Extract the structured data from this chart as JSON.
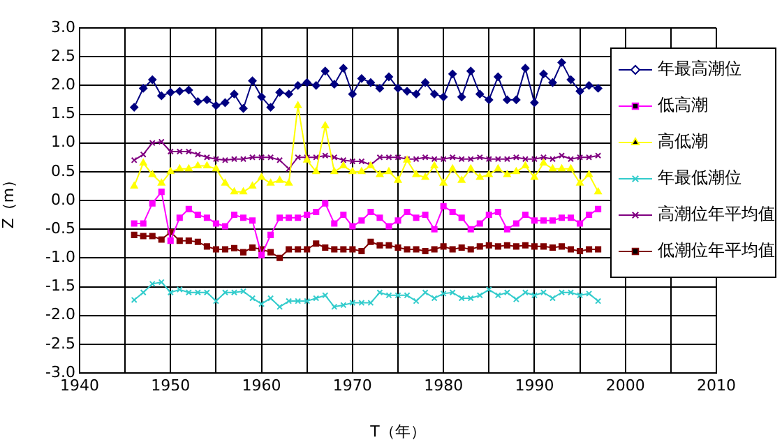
{
  "chart_data": {
    "type": "line",
    "xlabel": "T（年）",
    "ylabel": "Z（m）",
    "x": [
      1946,
      1947,
      1948,
      1949,
      1950,
      1951,
      1952,
      1953,
      1954,
      1955,
      1956,
      1957,
      1958,
      1959,
      1960,
      1961,
      1962,
      1963,
      1964,
      1965,
      1966,
      1967,
      1968,
      1969,
      1970,
      1971,
      1972,
      1973,
      1974,
      1975,
      1976,
      1977,
      1978,
      1979,
      1980,
      1981,
      1982,
      1983,
      1984,
      1985,
      1986,
      1987,
      1988,
      1989,
      1990,
      1991,
      1992,
      1993,
      1994,
      1995,
      1996,
      1997
    ],
    "series": [
      {
        "name": "年最高潮位",
        "color": "#000080",
        "marker": "diamond",
        "values": [
          1.62,
          1.95,
          2.1,
          1.82,
          1.88,
          1.9,
          1.92,
          1.72,
          1.75,
          1.65,
          1.7,
          1.85,
          1.6,
          2.08,
          1.8,
          1.62,
          1.88,
          1.85,
          2.0,
          2.05,
          2.0,
          2.25,
          2.02,
          2.3,
          1.85,
          2.12,
          2.05,
          1.95,
          2.15,
          1.95,
          1.9,
          1.85,
          2.05,
          1.85,
          1.8,
          2.2,
          1.8,
          2.25,
          1.85,
          1.75,
          2.15,
          1.75,
          1.75,
          2.3,
          1.7,
          2.2,
          2.05,
          2.4,
          2.1,
          1.9,
          2.0,
          1.95
        ]
      },
      {
        "name": "低高潮",
        "color": "#ff00ff",
        "marker": "square",
        "values": [
          -0.4,
          -0.4,
          -0.05,
          0.15,
          -0.7,
          -0.3,
          -0.15,
          -0.25,
          -0.3,
          -0.4,
          -0.45,
          -0.25,
          -0.3,
          -0.35,
          -0.95,
          -0.6,
          -0.3,
          -0.3,
          -0.3,
          -0.25,
          -0.2,
          -0.05,
          -0.4,
          -0.25,
          -0.45,
          -0.35,
          -0.2,
          -0.3,
          -0.45,
          -0.35,
          -0.2,
          -0.3,
          -0.25,
          -0.5,
          -0.1,
          -0.2,
          -0.3,
          -0.5,
          -0.4,
          -0.25,
          -0.2,
          -0.5,
          -0.4,
          -0.25,
          -0.35,
          -0.35,
          -0.35,
          -0.3,
          -0.3,
          -0.4,
          -0.25,
          -0.15
        ]
      },
      {
        "name": "高低潮",
        "color": "#ffff00",
        "marker": "triangle",
        "values": [
          0.25,
          0.65,
          0.45,
          0.3,
          0.5,
          0.55,
          0.55,
          0.6,
          0.6,
          0.55,
          0.3,
          0.15,
          0.15,
          0.25,
          0.4,
          0.3,
          0.35,
          0.3,
          1.65,
          0.7,
          0.5,
          1.3,
          0.5,
          0.6,
          0.5,
          0.5,
          0.6,
          0.45,
          0.5,
          0.35,
          0.7,
          0.45,
          0.4,
          0.6,
          0.3,
          0.55,
          0.35,
          0.55,
          0.4,
          0.45,
          0.55,
          0.45,
          0.5,
          0.6,
          0.4,
          0.65,
          0.55,
          0.55,
          0.55,
          0.3,
          0.45,
          0.15
        ]
      },
      {
        "name": "年最低潮位",
        "color": "#33cccc",
        "marker": "cross",
        "values": [
          -1.73,
          -1.6,
          -1.45,
          -1.42,
          -1.6,
          -1.55,
          -1.6,
          -1.6,
          -1.6,
          -1.75,
          -1.6,
          -1.6,
          -1.58,
          -1.7,
          -1.8,
          -1.7,
          -1.85,
          -1.75,
          -1.75,
          -1.75,
          -1.7,
          -1.65,
          -1.85,
          -1.82,
          -1.78,
          -1.78,
          -1.78,
          -1.6,
          -1.65,
          -1.65,
          -1.65,
          -1.75,
          -1.6,
          -1.7,
          -1.62,
          -1.6,
          -1.7,
          -1.7,
          -1.65,
          -1.55,
          -1.65,
          -1.6,
          -1.72,
          -1.6,
          -1.65,
          -1.6,
          -1.7,
          -1.6,
          -1.6,
          -1.65,
          -1.62,
          -1.75
        ]
      },
      {
        "name": "高潮位年平均值",
        "color": "#800080",
        "marker": "cross",
        "values": [
          0.7,
          0.8,
          1.0,
          1.02,
          0.85,
          0.85,
          0.85,
          0.8,
          0.75,
          0.72,
          0.7,
          0.72,
          0.72,
          0.75,
          0.75,
          0.75,
          0.7,
          0.55,
          0.75,
          0.75,
          0.75,
          0.78,
          0.75,
          0.7,
          0.68,
          0.68,
          0.62,
          0.75,
          0.75,
          0.75,
          0.72,
          0.72,
          0.75,
          0.72,
          0.72,
          0.75,
          0.72,
          0.72,
          0.75,
          0.72,
          0.72,
          0.72,
          0.75,
          0.72,
          0.72,
          0.75,
          0.72,
          0.78,
          0.72,
          0.75,
          0.75,
          0.78
        ]
      },
      {
        "name": "低潮位年平均值",
        "color": "#800000",
        "marker": "square",
        "values": [
          -0.6,
          -0.62,
          -0.62,
          -0.68,
          -0.55,
          -0.7,
          -0.7,
          -0.72,
          -0.8,
          -0.85,
          -0.85,
          -0.83,
          -0.9,
          -0.82,
          -0.85,
          -0.9,
          -1.0,
          -0.85,
          -0.85,
          -0.85,
          -0.75,
          -0.82,
          -0.85,
          -0.85,
          -0.85,
          -0.88,
          -0.72,
          -0.78,
          -0.78,
          -0.82,
          -0.85,
          -0.85,
          -0.88,
          -0.85,
          -0.8,
          -0.85,
          -0.82,
          -0.85,
          -0.8,
          -0.78,
          -0.8,
          -0.78,
          -0.8,
          -0.78,
          -0.8,
          -0.8,
          -0.82,
          -0.8,
          -0.85,
          -0.88,
          -0.85,
          -0.85
        ]
      }
    ],
    "xlim": [
      1940,
      2010
    ],
    "xticks": [
      1940,
      {
        "value": 1945,
        "label": null
      },
      1950,
      {
        "value": 1955,
        "label": null
      },
      1960,
      {
        "value": 1965,
        "label": null
      },
      1970,
      {
        "value": 1975,
        "label": null
      },
      1980,
      {
        "value": 1985,
        "label": null
      },
      1990,
      {
        "value": 1995,
        "label": null
      },
      2000,
      {
        "value": 2005,
        "label": null
      },
      2010
    ],
    "ylim": [
      -3,
      3
    ],
    "yticks": [
      {
        "value": -3,
        "label": "-3.0"
      },
      {
        "value": -2.5,
        "label": "-2.5"
      },
      {
        "value": -2,
        "label": "-2.0"
      },
      {
        "value": -1.5,
        "label": "-1.5"
      },
      {
        "value": -1,
        "label": "-1.0"
      },
      {
        "value": -0.5,
        "label": "-0.5"
      },
      {
        "value": 0,
        "label": "0.0"
      },
      {
        "value": 0.5,
        "label": "0.5"
      },
      {
        "value": 1,
        "label": "1.0"
      },
      {
        "value": 1.5,
        "label": "1.5"
      },
      {
        "value": 2,
        "label": "2.0"
      },
      {
        "value": 2.5,
        "label": "2.5"
      },
      {
        "value": 3,
        "label": "3.0"
      }
    ],
    "grid": true,
    "legend": "top right",
    "line_style": "solid"
  }
}
